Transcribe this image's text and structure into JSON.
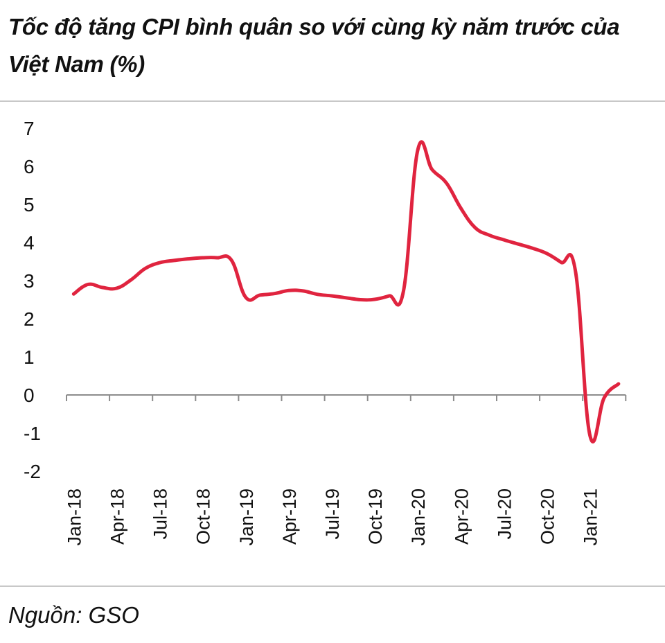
{
  "chart_data": {
    "type": "line",
    "title": "Tốc độ tăng CPI bình quân so với cùng kỳ năm trước của Việt Nam (%)",
    "source": "Nguồn: GSO",
    "xlabel": "",
    "ylabel": "",
    "ylim": [
      -2,
      7
    ],
    "y_ticks": [
      "-2",
      "-1",
      "0",
      "1",
      "2",
      "3",
      "4",
      "5",
      "6",
      "7"
    ],
    "x_tick_labels": [
      "Jan-18",
      "Apr-18",
      "Jul-18",
      "Oct-18",
      "Jan-19",
      "Apr-19",
      "Jul-19",
      "Oct-19",
      "Jan-20",
      "Apr-20",
      "Jul-20",
      "Oct-20",
      "Jan-21"
    ],
    "grid": false,
    "legend": "none",
    "series": [
      {
        "color": "#e0243f",
        "x": [
          "Jan-18",
          "Feb-18",
          "Mar-18",
          "Apr-18",
          "May-18",
          "Jun-18",
          "Jul-18",
          "Aug-18",
          "Sep-18",
          "Oct-18",
          "Nov-18",
          "Dec-18",
          "Jan-19",
          "Feb-19",
          "Mar-19",
          "Apr-19",
          "May-19",
          "Jun-19",
          "Jul-19",
          "Aug-19",
          "Sep-19",
          "Oct-19",
          "Nov-19",
          "Dec-19",
          "Jan-20",
          "Feb-20",
          "Mar-20",
          "Apr-20",
          "May-20",
          "Jun-20",
          "Jul-20",
          "Aug-20",
          "Sep-20",
          "Oct-20",
          "Nov-20",
          "Dec-20",
          "Jan-21",
          "Feb-21",
          "Mar-21"
        ],
        "values": [
          2.65,
          2.9,
          2.82,
          2.8,
          3.02,
          3.32,
          3.47,
          3.53,
          3.57,
          3.6,
          3.6,
          3.54,
          2.56,
          2.62,
          2.66,
          2.74,
          2.73,
          2.64,
          2.6,
          2.55,
          2.5,
          2.51,
          2.6,
          2.73,
          6.43,
          5.91,
          5.56,
          4.9,
          4.39,
          4.19,
          4.07,
          3.96,
          3.85,
          3.71,
          3.48,
          3.23,
          -1.05,
          -0.07,
          0.29
        ]
      }
    ]
  }
}
